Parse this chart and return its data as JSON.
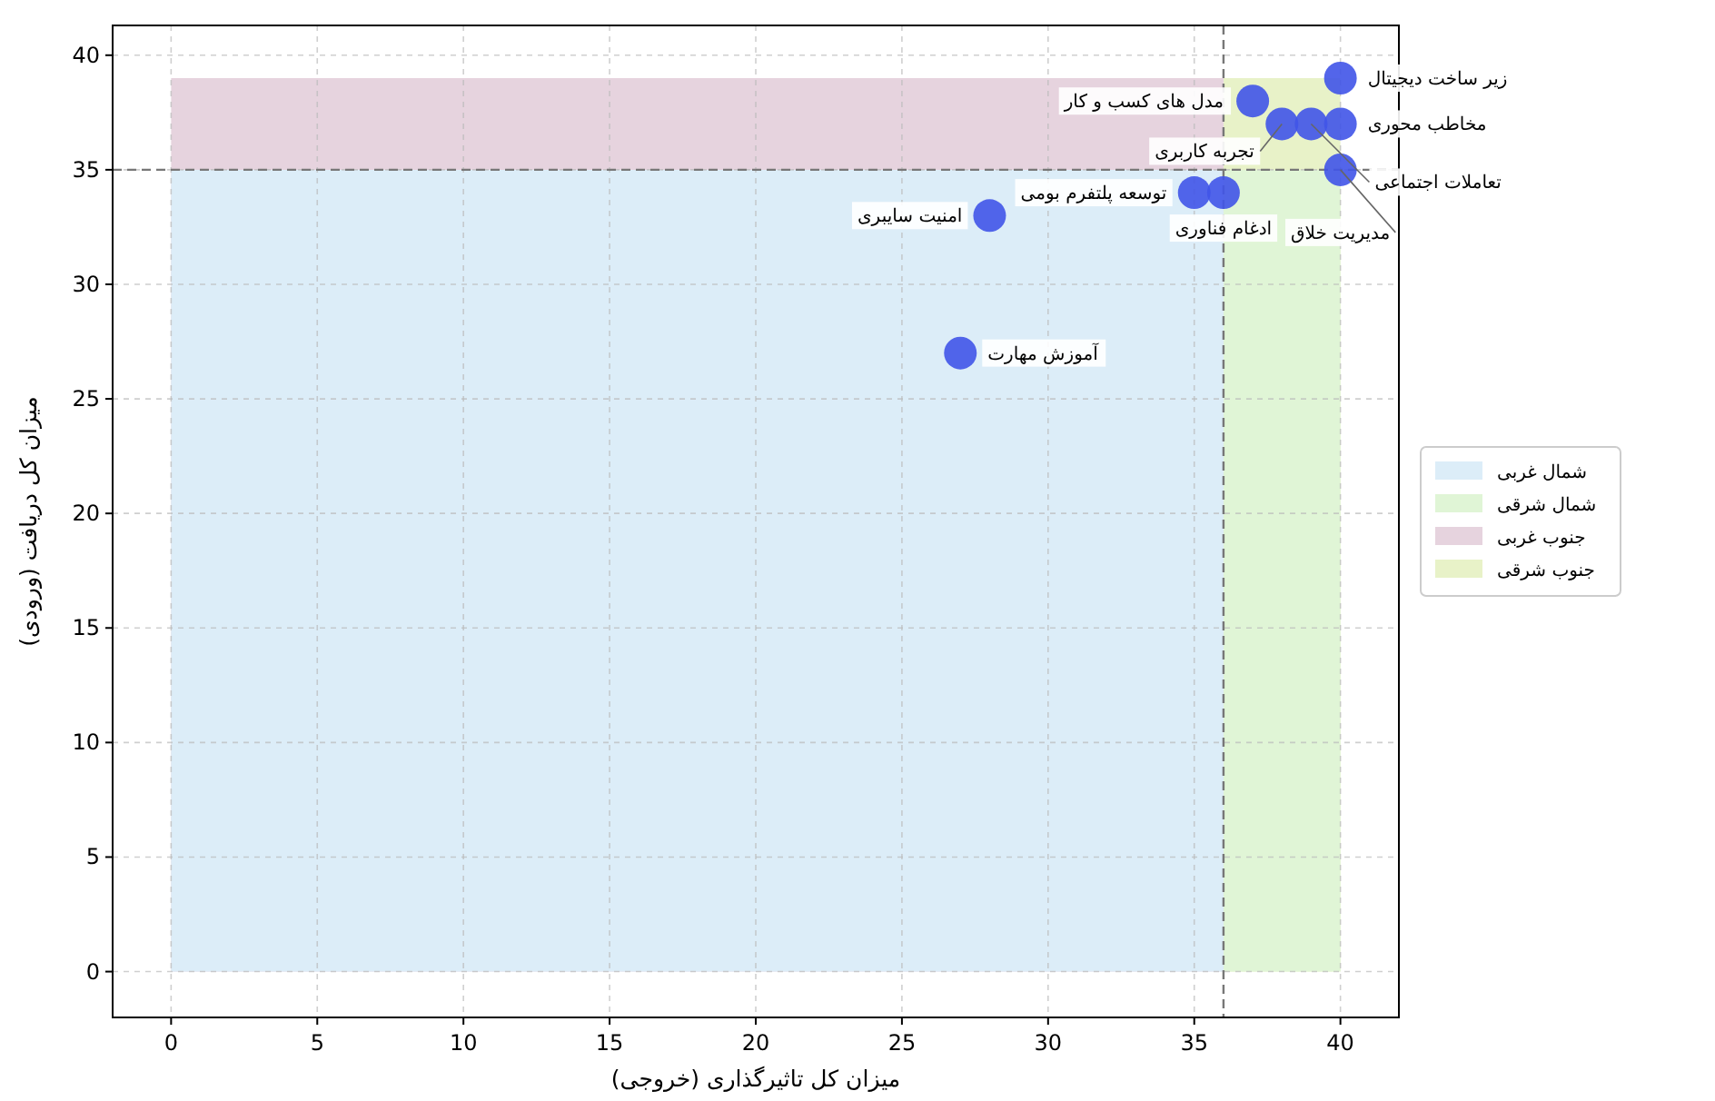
{
  "chart_data": {
    "type": "scatter",
    "xlabel": "میزان کل تاثیرگذاری (خروجی)",
    "ylabel": "میزان کل دریافت (ورودی)",
    "xlim": [
      -2,
      42
    ],
    "ylim": [
      -2,
      41.3
    ],
    "xticks": [
      0,
      5,
      10,
      15,
      20,
      25,
      30,
      35,
      40
    ],
    "yticks": [
      0,
      5,
      10,
      15,
      20,
      25,
      30,
      35,
      40
    ],
    "grid": true,
    "legend": "right",
    "series": [
      {
        "type": "area",
        "name": "شمال غربی",
        "color": "#dcedf8",
        "x": [
          0,
          36
        ],
        "values": [
          35,
          35
        ]
      },
      {
        "type": "area",
        "name": "شمال شرقی",
        "color": "#e0f5d6",
        "x": [
          36,
          40
        ],
        "values": [
          35,
          35
        ]
      },
      {
        "type": "area",
        "name": "جنوب غربی",
        "color": "#e6d3de",
        "x": [
          0,
          36
        ],
        "values": [
          39,
          39
        ]
      },
      {
        "type": "area",
        "name": "جنوب شرقی",
        "color": "#e8f2c8",
        "x": [
          36,
          40
        ],
        "values": [
          39,
          39
        ]
      },
      {
        "marker": "circle",
        "color": "#4054e8",
        "x": [
          40,
          37,
          38,
          39,
          40,
          40,
          35,
          36,
          28,
          27
        ],
        "values": [
          39,
          38,
          37,
          37,
          37,
          35,
          34,
          34,
          33,
          27
        ]
      }
    ],
    "ref_lines": [
      {
        "axis": "x",
        "value": 36,
        "line_style": "dashed",
        "color": "#777777"
      },
      {
        "axis": "y",
        "value": 35,
        "line_style": "dashed",
        "color": "#777777"
      }
    ],
    "annotations": [
      {
        "text": "زیر ساخت دیجیتال",
        "x": 40,
        "y": 39
      },
      {
        "text": "مدل های کسب و کار",
        "x": 37,
        "y": 38
      },
      {
        "text": "تجربه کاربری",
        "x": 38,
        "y": 37
      },
      {
        "text": "تعاملات اجتماعی",
        "x": 39,
        "y": 37
      },
      {
        "text": "مخاطب محوری",
        "x": 40,
        "y": 37
      },
      {
        "text": "مدیریت خلاق",
        "x": 40,
        "y": 35
      },
      {
        "text": "توسعه پلتفرم بومی",
        "x": 35,
        "y": 34
      },
      {
        "text": "ادغام فناوری",
        "x": 36,
        "y": 34
      },
      {
        "text": "امنیت سایبری",
        "x": 28,
        "y": 33
      },
      {
        "text": "آموزش مهارت",
        "x": 27,
        "y": 27
      }
    ]
  }
}
